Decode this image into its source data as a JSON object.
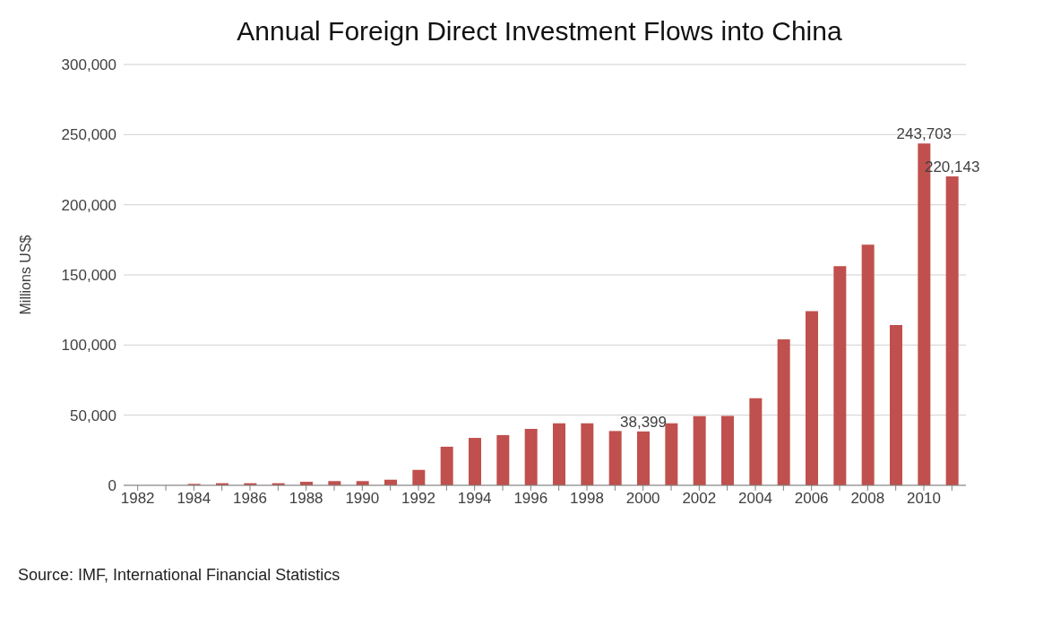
{
  "chart_data": {
    "type": "bar",
    "title": "Annual Foreign Direct Investment Flows into China",
    "ylabel": "Millions US$",
    "categories": [
      "1982",
      null,
      "1984",
      null,
      "1986",
      null,
      "1988",
      null,
      "1990",
      null,
      "1992",
      null,
      "1994",
      null,
      "1996",
      null,
      "1998",
      null,
      "2000",
      null,
      "2002",
      null,
      "2004",
      null,
      "2006",
      null,
      "2008",
      null,
      "2010",
      null
    ],
    "values": [
      0,
      0,
      1000,
      1500,
      1500,
      1500,
      2500,
      3000,
      3000,
      4000,
      11000,
      27500,
      33800,
      35800,
      40200,
      44200,
      44200,
      38700,
      38399,
      44200,
      49300,
      49500,
      62100,
      104100,
      124100,
      156200,
      171500,
      114200,
      243703,
      220143
    ],
    "value_labels": [
      null,
      null,
      null,
      null,
      null,
      null,
      null,
      null,
      null,
      null,
      null,
      null,
      null,
      null,
      null,
      null,
      null,
      null,
      "38,399",
      null,
      null,
      null,
      null,
      null,
      null,
      null,
      null,
      null,
      "243,703",
      "220,143"
    ],
    "color": "#c0504d",
    "ylim": [
      0,
      300000
    ],
    "yticks": [
      {
        "value": 0,
        "label": "0"
      },
      {
        "value": 50000,
        "label": "50,000"
      },
      {
        "value": 100000,
        "label": "100,000"
      },
      {
        "value": 150000,
        "label": "150,000"
      },
      {
        "value": 200000,
        "label": "200,000"
      },
      {
        "value": 250000,
        "label": "250,000"
      },
      {
        "value": 300000,
        "label": "300,000"
      }
    ],
    "grid": "y",
    "legend": false,
    "annotations": [
      "Source: IMF, International Financial Statistics"
    ]
  }
}
